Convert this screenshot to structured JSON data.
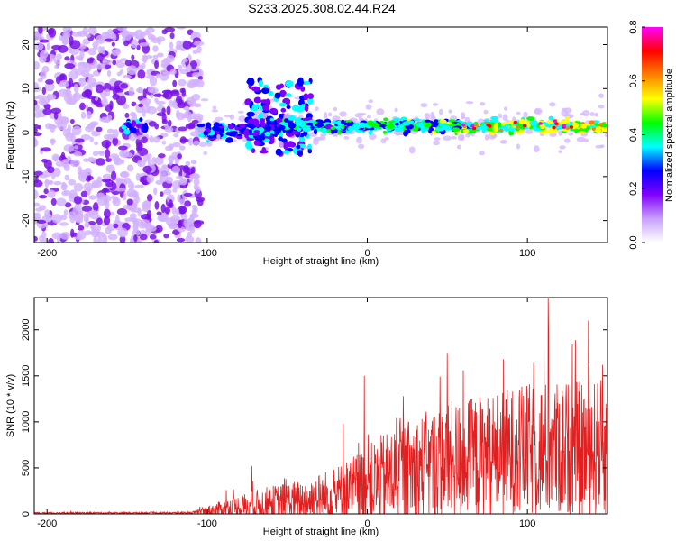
{
  "title": "S233.2025.308.02.44.R24",
  "chart_data": [
    {
      "type": "heatmap",
      "name": "spectrogram",
      "xlabel": "Height of straight line (km)",
      "ylabel": "Frequency (Hz)",
      "xlim": [
        -208,
        150
      ],
      "ylim": [
        -25,
        24
      ],
      "xticks": [
        -200,
        -100,
        0,
        100
      ],
      "yticks": [
        -20,
        -10,
        0,
        10,
        20
      ],
      "colorbar": {
        "label": "Normalized spectral amplitude",
        "range": [
          0.0,
          0.8
        ],
        "ticks": [
          "0.0",
          "0.2",
          "0.4",
          "0.6",
          "0.8"
        ],
        "colors": [
          "#ffffff",
          "#c8a0ff",
          "#8000ff",
          "#0000ff",
          "#00ffff",
          "#00ff00",
          "#ffff00",
          "#ff8000",
          "#ff0000",
          "#ff00ff"
        ]
      },
      "features": {
        "noise_region_x": [
          -208,
          -104
        ],
        "isolated_patch": {
          "x": [
            -152,
            -138
          ],
          "y": 1.5
        },
        "signal_band": {
          "x_start": -104,
          "x_end": 150,
          "center_hz": 1.5,
          "peak_amplitude_near_x": [
            60,
            130
          ]
        },
        "broad_lobe": {
          "x": [
            -75,
            -35
          ],
          "y": [
            -5,
            12
          ]
        }
      }
    },
    {
      "type": "line",
      "name": "snr",
      "xlabel": "Height of straight line (km)",
      "ylabel": "SNR (10 * v/v)",
      "xlim": [
        -208,
        150
      ],
      "ylim": [
        0,
        2350
      ],
      "xticks": [
        -200,
        -100,
        0,
        100
      ],
      "yticks": [
        0,
        500,
        1000,
        1500,
        2000
      ],
      "color": "#e02020",
      "envelope": [
        {
          "x": -208,
          "base": 10,
          "amp": 8
        },
        {
          "x": -110,
          "base": 12,
          "amp": 10
        },
        {
          "x": -95,
          "base": 40,
          "amp": 80
        },
        {
          "x": -80,
          "base": 70,
          "amp": 140
        },
        {
          "x": -60,
          "base": 110,
          "amp": 200
        },
        {
          "x": -40,
          "base": 140,
          "amp": 240
        },
        {
          "x": -20,
          "base": 200,
          "amp": 320
        },
        {
          "x": 0,
          "base": 300,
          "amp": 450
        },
        {
          "x": 20,
          "base": 450,
          "amp": 550
        },
        {
          "x": 50,
          "base": 560,
          "amp": 650
        },
        {
          "x": 80,
          "base": 640,
          "amp": 700
        },
        {
          "x": 110,
          "base": 700,
          "amp": 750
        },
        {
          "x": 150,
          "base": 720,
          "amp": 750
        }
      ],
      "spikes": [
        {
          "x": 113,
          "y": 2340
        },
        {
          "x": 138,
          "y": 2100
        },
        {
          "x": 147,
          "y": 1620
        },
        {
          "x": 50,
          "y": 1740
        },
        {
          "x": -2,
          "y": 1500
        },
        {
          "x": 85,
          "y": 1680
        },
        {
          "x": 60,
          "y": 1560
        },
        {
          "x": -72,
          "y": 520
        },
        {
          "x": -88,
          "y": 260
        },
        {
          "x": -15,
          "y": 980
        }
      ]
    }
  ]
}
